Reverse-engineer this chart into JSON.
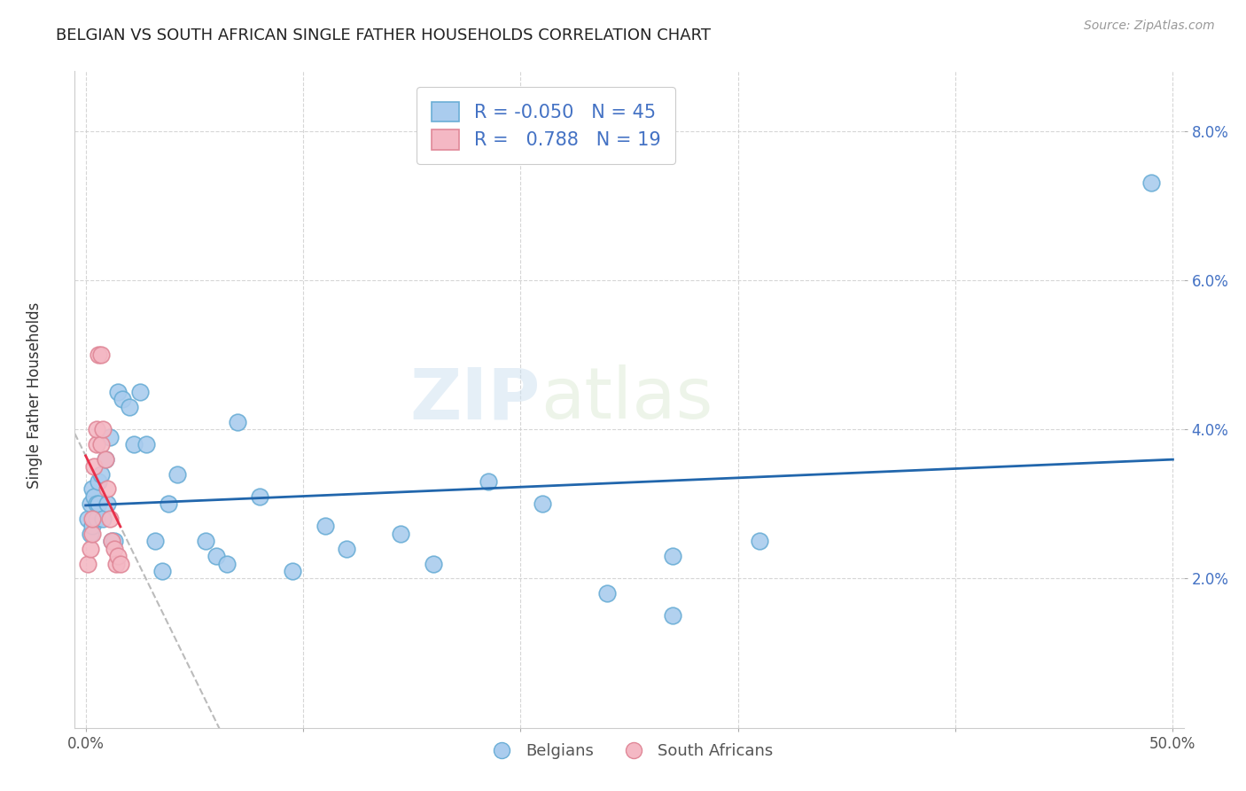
{
  "title": "BELGIAN VS SOUTH AFRICAN SINGLE FATHER HOUSEHOLDS CORRELATION CHART",
  "source": "Source: ZipAtlas.com",
  "ylabel": "Single Father Households",
  "xlim": [
    0.0,
    0.5
  ],
  "ylim": [
    0.0,
    0.088
  ],
  "watermark": "ZIPatlas",
  "belgian_color": "#6baed6",
  "belgian_color_fill": "#aaccee",
  "sa_color_edge": "#e08898",
  "sa_color_fill": "#f4b8c4",
  "trendline_belgian_color": "#2166ac",
  "trendline_sa_color": "#e8304a",
  "trendline_dashed_color": "#bbbbbb",
  "legend_R_belgian": "-0.050",
  "legend_N_belgian": "45",
  "legend_R_sa": "0.788",
  "legend_N_sa": "19",
  "belgians_x": [
    0.001,
    0.002,
    0.002,
    0.003,
    0.003,
    0.004,
    0.004,
    0.005,
    0.005,
    0.006,
    0.006,
    0.007,
    0.008,
    0.009,
    0.01,
    0.011,
    0.012,
    0.013,
    0.015,
    0.017,
    0.02,
    0.022,
    0.025,
    0.028,
    0.032,
    0.035,
    0.038,
    0.042,
    0.055,
    0.06,
    0.065,
    0.07,
    0.08,
    0.095,
    0.11,
    0.12,
    0.145,
    0.16,
    0.185,
    0.21,
    0.24,
    0.27,
    0.31,
    0.27,
    0.49
  ],
  "belgians_y": [
    0.028,
    0.03,
    0.026,
    0.032,
    0.027,
    0.028,
    0.031,
    0.03,
    0.028,
    0.033,
    0.03,
    0.034,
    0.028,
    0.036,
    0.03,
    0.039,
    0.025,
    0.025,
    0.045,
    0.044,
    0.043,
    0.038,
    0.045,
    0.038,
    0.025,
    0.021,
    0.03,
    0.034,
    0.025,
    0.023,
    0.022,
    0.041,
    0.031,
    0.021,
    0.027,
    0.024,
    0.026,
    0.022,
    0.033,
    0.03,
    0.018,
    0.023,
    0.025,
    0.015,
    0.073
  ],
  "southafricans_x": [
    0.001,
    0.002,
    0.003,
    0.003,
    0.004,
    0.005,
    0.005,
    0.006,
    0.007,
    0.007,
    0.008,
    0.009,
    0.01,
    0.011,
    0.012,
    0.013,
    0.014,
    0.015,
    0.016
  ],
  "southafricans_y": [
    0.022,
    0.024,
    0.026,
    0.028,
    0.035,
    0.038,
    0.04,
    0.05,
    0.05,
    0.038,
    0.04,
    0.036,
    0.032,
    0.028,
    0.025,
    0.024,
    0.022,
    0.023,
    0.022
  ],
  "xtick_positions": [
    0.0,
    0.1,
    0.2,
    0.3,
    0.4,
    0.5
  ],
  "xtick_labels": [
    "0.0%",
    "",
    "",
    "",
    "",
    "50.0%"
  ],
  "ytick_positions": [
    0.02,
    0.04,
    0.06,
    0.08
  ],
  "ytick_labels": [
    "2.0%",
    "4.0%",
    "6.0%",
    "8.0%"
  ]
}
